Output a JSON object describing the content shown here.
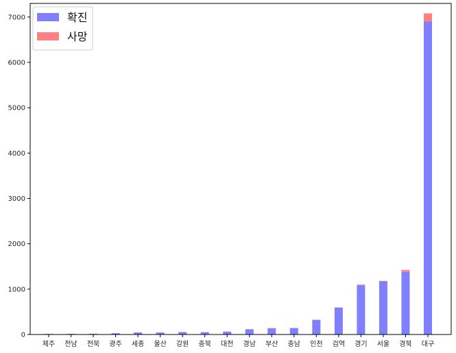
{
  "chart_data": {
    "type": "bar",
    "stacked": true,
    "categories": [
      "제주",
      "전남",
      "전북",
      "광주",
      "세종",
      "울산",
      "강원",
      "충북",
      "대전",
      "경남",
      "부산",
      "충남",
      "인천",
      "검역",
      "경기",
      "서울",
      "경북",
      "대구"
    ],
    "series": [
      {
        "name": "확진",
        "color": "#8080ff",
        "values": [
          13,
          15,
          17,
          28,
          46,
          45,
          53,
          51,
          64,
          117,
          138,
          143,
          324,
          595,
          1080,
          1180,
          1380,
          6900
        ]
      },
      {
        "name": "사망",
        "color": "#ff8080",
        "values": [
          0,
          0,
          0,
          0,
          0,
          1,
          3,
          0,
          0,
          0,
          3,
          0,
          0,
          0,
          20,
          2,
          45,
          180
        ]
      }
    ],
    "ylim": [
      0,
      7300
    ],
    "yticks": [
      0,
      1000,
      2000,
      3000,
      4000,
      5000,
      6000,
      7000
    ],
    "legend_position": "top-left",
    "grid": false
  }
}
